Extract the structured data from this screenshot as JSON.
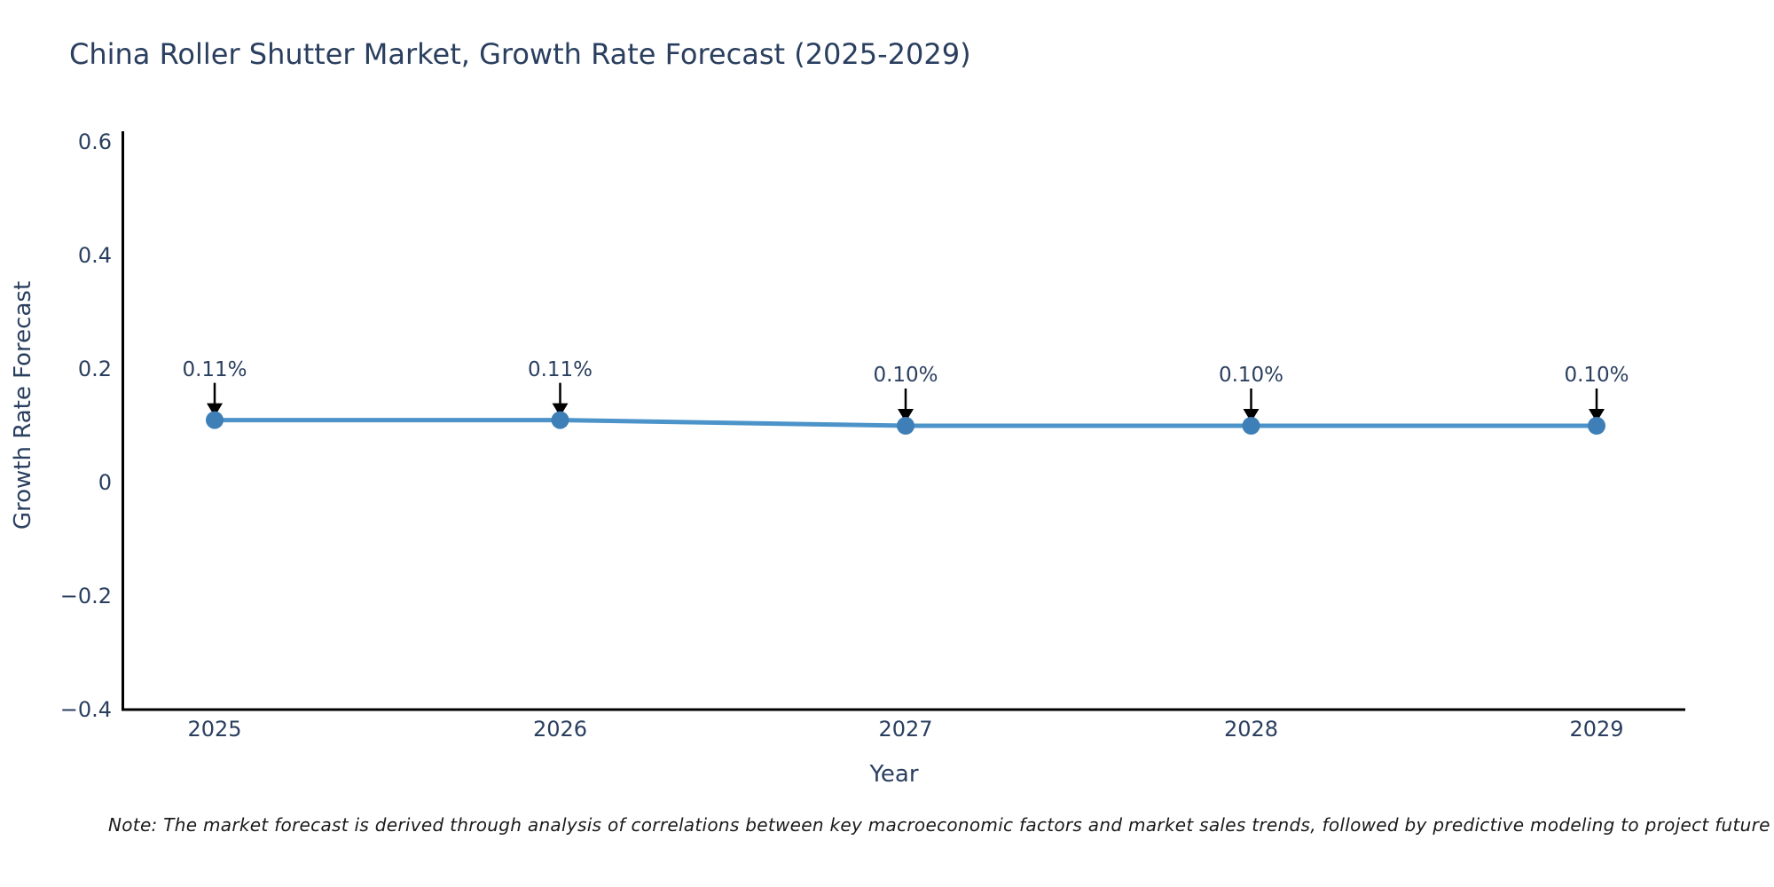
{
  "title": "China Roller Shutter Market, Growth Rate Forecast (2025-2029)",
  "colors": {
    "title_text": "#2a3f5f",
    "tick_text": "#2a3f5f",
    "annotation_text": "#2a3f5f",
    "line": "#4b93c9",
    "marker": "#3f7fb7",
    "axis_line": "#000000",
    "arrow": "#000000",
    "note_text": "#1a1a1a",
    "background": "#ffffff"
  },
  "chart_data": {
    "type": "line",
    "title": "China Roller Shutter Market, Growth Rate Forecast (2025-2029)",
    "xlabel": "Year",
    "ylabel": "Growth Rate Forecast",
    "categories": [
      "2025",
      "2026",
      "2027",
      "2028",
      "2029"
    ],
    "series": [
      {
        "name": "Growth Rate Forecast",
        "values": [
          0.11,
          0.11,
          0.1,
          0.1,
          0.1
        ]
      }
    ],
    "point_labels": [
      "0.11%",
      "0.11%",
      "0.10%",
      "0.10%",
      "0.10%"
    ],
    "ylim": [
      -0.4,
      0.6
    ],
    "yticks": [
      0.6,
      0.4,
      0.2,
      0,
      -0.2,
      -0.4
    ],
    "ytick_labels": [
      "0.6",
      "0.4",
      "0.2",
      "0",
      "−0.2",
      "−0.4"
    ],
    "grid": false,
    "legend": "none",
    "annotations": "each data point labeled with its value and a downward black arrow"
  },
  "note": "Note: The market forecast is derived through analysis of correlations between key macroeconomic factors and market sales trends, followed by predictive modeling to project future sa"
}
